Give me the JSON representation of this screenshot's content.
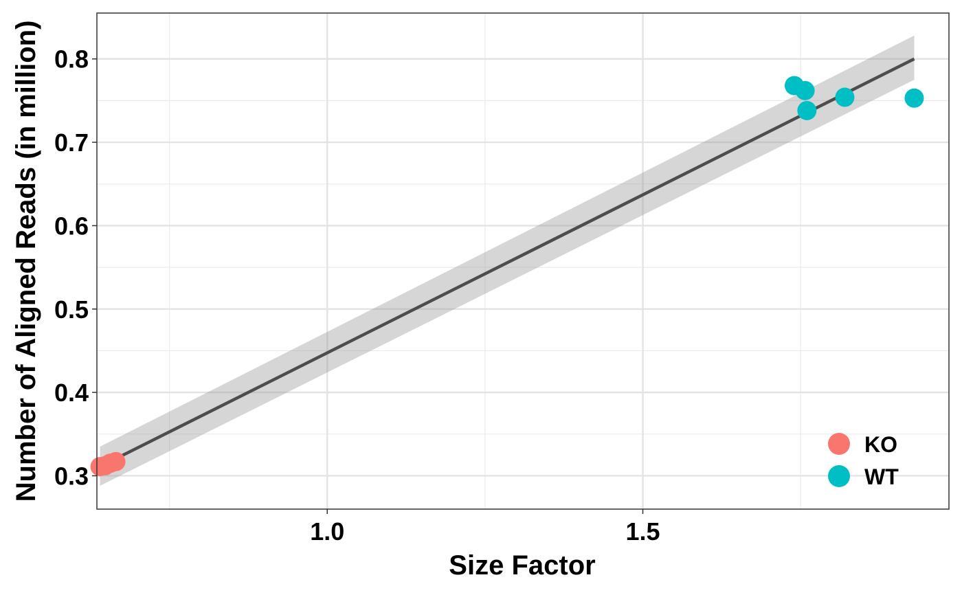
{
  "chart_data": {
    "type": "scatter",
    "xlabel": "Size Factor",
    "ylabel": "Number of Aligned Reads (in million)",
    "xlim": [
      0.635,
      1.985
    ],
    "ylim": [
      0.26,
      0.855
    ],
    "x_major_ticks": [
      1.0,
      1.5
    ],
    "x_minor_ticks": [
      0.75,
      1.25,
      1.75
    ],
    "x_tick_labels": [
      "1.0",
      "1.5"
    ],
    "y_major_ticks": [
      0.3,
      0.4,
      0.5,
      0.6,
      0.7,
      0.8
    ],
    "y_minor_ticks": [
      0.35,
      0.45,
      0.55,
      0.65,
      0.75
    ],
    "y_tick_labels": [
      "0.3",
      "0.4",
      "0.5",
      "0.6",
      "0.7",
      "0.8"
    ],
    "grid": true,
    "legend_position": "bottom-right",
    "series": [
      {
        "name": "KO",
        "color": "#F8766D",
        "points": [
          {
            "x": 0.64,
            "y": 0.311
          },
          {
            "x": 0.648,
            "y": 0.312
          },
          {
            "x": 0.656,
            "y": 0.315
          },
          {
            "x": 0.665,
            "y": 0.317
          }
        ]
      },
      {
        "name": "WT",
        "color": "#00BFC4",
        "points": [
          {
            "x": 1.74,
            "y": 0.768
          },
          {
            "x": 1.757,
            "y": 0.762
          },
          {
            "x": 1.76,
            "y": 0.738
          },
          {
            "x": 1.82,
            "y": 0.754
          },
          {
            "x": 1.93,
            "y": 0.753
          }
        ]
      }
    ],
    "fit_line": {
      "color": "#4D4D4D",
      "band_color": "#999999",
      "x": [
        0.64,
        1.93
      ],
      "y": [
        0.311,
        0.8
      ],
      "band_lower": [
        0.288,
        0.775
      ],
      "band_upper": [
        0.335,
        0.828
      ]
    }
  }
}
